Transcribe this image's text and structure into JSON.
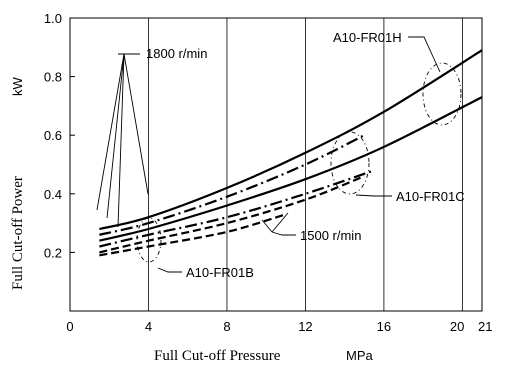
{
  "chart_data": {
    "type": "line",
    "xlabel": "Full Cut-off Pressure",
    "xunit": "MPa",
    "ylabel": "Full Cut-off Power",
    "yunit": "kW",
    "xlim": [
      0,
      21
    ],
    "ylim": [
      0.0,
      1.0
    ],
    "xticks": [
      0,
      4,
      8,
      12,
      16,
      20,
      21
    ],
    "yticks": [
      0.2,
      0.4,
      0.6,
      0.8,
      1.0
    ],
    "grid": "vertical-lines-at-x-ticks",
    "series": [
      {
        "model": "A10-FR01H",
        "speed": "1800 r/min",
        "style": "solid",
        "x": [
          1.5,
          4,
          8,
          12,
          16,
          21
        ],
        "y": [
          0.28,
          0.32,
          0.42,
          0.54,
          0.68,
          0.89
        ]
      },
      {
        "model": "A10-FR01H",
        "speed": "1500 r/min",
        "style": "dashdot",
        "x": [
          1.5,
          4,
          8,
          12,
          15
        ],
        "y": [
          0.26,
          0.3,
          0.39,
          0.5,
          0.6
        ]
      },
      {
        "model": "A10-FR01C",
        "speed": "1800 r/min",
        "style": "solid",
        "x": [
          1.5,
          4,
          8,
          12,
          16,
          21
        ],
        "y": [
          0.24,
          0.28,
          0.36,
          0.45,
          0.56,
          0.73
        ]
      },
      {
        "model": "A10-FR01C",
        "speed": "1500 r/min",
        "style": "dashdot",
        "x": [
          1.5,
          4,
          8,
          12,
          15.5
        ],
        "y": [
          0.22,
          0.26,
          0.32,
          0.4,
          0.48
        ]
      },
      {
        "model": "A10-FR01B",
        "speed": "1800 r/min",
        "style": "dashed",
        "x": [
          1.5,
          4,
          8,
          12,
          15
        ],
        "y": [
          0.2,
          0.24,
          0.3,
          0.38,
          0.46
        ]
      },
      {
        "model": "A10-FR01B",
        "speed": "1500 r/min",
        "style": "dashed",
        "x": [
          1.5,
          4,
          8,
          11
        ],
        "y": [
          0.19,
          0.22,
          0.27,
          0.33
        ]
      }
    ],
    "annotations": {
      "label_1800": "1800 r/min",
      "label_1500": "1500 r/min",
      "label_H": "A10-FR01H",
      "label_C": "A10-FR01C",
      "label_B": "A10-FR01B"
    }
  }
}
